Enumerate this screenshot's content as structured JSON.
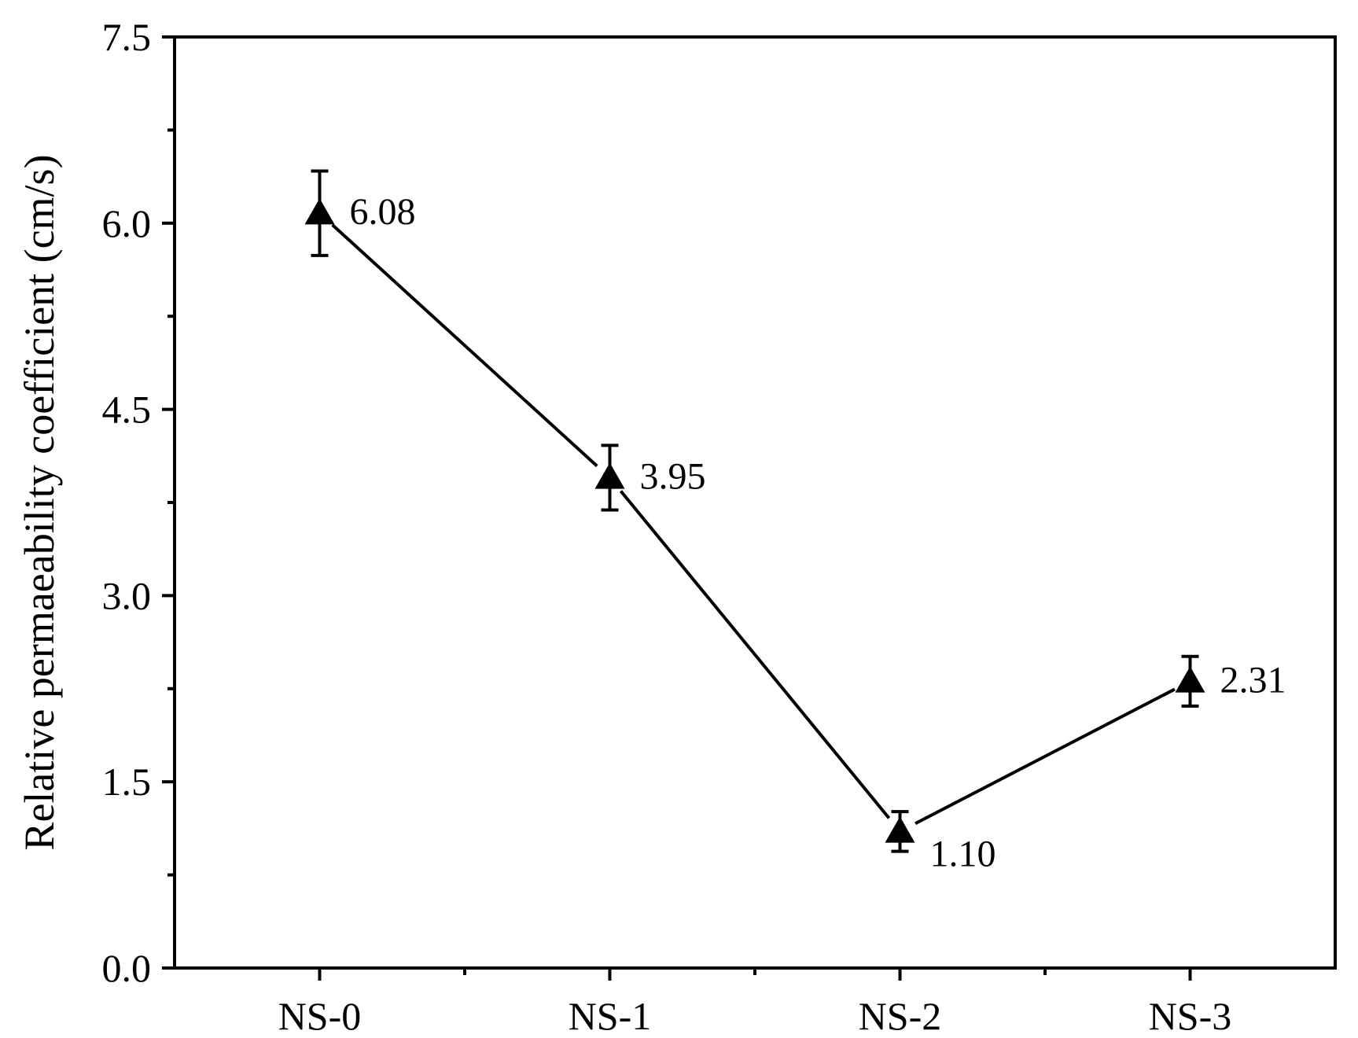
{
  "chart_data": {
    "type": "line",
    "categories": [
      "NS-0",
      "NS-1",
      "NS-2",
      "NS-3"
    ],
    "series": [
      {
        "values": [
          6.08,
          3.95,
          1.1,
          2.31
        ],
        "errors": [
          0.34,
          0.26,
          0.16,
          0.2
        ],
        "marker": "triangle",
        "color": "#000000"
      }
    ],
    "data_labels": [
      "6.08",
      "3.95",
      "1.10",
      "2.31"
    ],
    "ylabel": "Relative permaeability coefficient (cm/s)",
    "xlabel": "",
    "ylim": [
      0,
      7.5
    ],
    "yticks": [
      0.0,
      1.5,
      3.0,
      4.5,
      6.0,
      7.5
    ],
    "ytick_labels": [
      "0.0",
      "1.5",
      "3.0",
      "4.5",
      "6.0",
      "7.5"
    ],
    "y_minor_ticks": [
      0.75,
      2.25,
      3.75,
      5.25,
      6.75
    ],
    "grid": false,
    "legend": "none"
  }
}
